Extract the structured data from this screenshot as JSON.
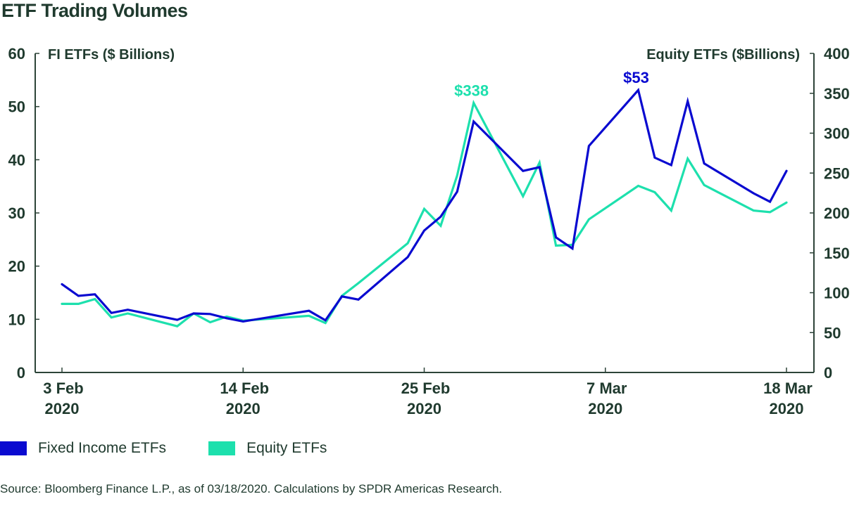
{
  "title": "ETF Trading Volumes",
  "legend": [
    {
      "label": "Fixed Income ETFs",
      "color": "#0a0ad0"
    },
    {
      "label": "Equity ETFs",
      "color": "#1de0ad"
    }
  ],
  "source": "Source: Bloomberg Finance L.P., as of 03/18/2020. Calculations by SPDR Americas Research.",
  "chart_data": {
    "type": "line",
    "title": "ETF Trading Volumes",
    "left_axis_label": "FI ETFs ($ Billions)",
    "right_axis_label": "Equity ETFs ($Billions)",
    "ylim_left": [
      0,
      60
    ],
    "ylim_right": [
      0,
      400
    ],
    "yticks_left": [
      "0",
      "10",
      "20",
      "30",
      "40",
      "50",
      "60"
    ],
    "yticks_right": [
      "0",
      "50",
      "100",
      "150",
      "200",
      "250",
      "300",
      "350",
      "400"
    ],
    "xticks": [
      {
        "day": 0,
        "line1": "3  Feb",
        "line2": "2020"
      },
      {
        "day": 11,
        "line1": "14  Feb",
        "line2": "2020"
      },
      {
        "day": 22,
        "line1": "25  Feb",
        "line2": "2020"
      },
      {
        "day": 33,
        "line1": "7  Mar",
        "line2": "2020"
      },
      {
        "day": 44,
        "line1": "18  Mar",
        "line2": "2020"
      }
    ],
    "x_days_from_3_feb": [
      0,
      1,
      2,
      3,
      4,
      7,
      8,
      9,
      10,
      11,
      15,
      16,
      17,
      18,
      21,
      22,
      23,
      24,
      25,
      28,
      29,
      30,
      31,
      32,
      35,
      36,
      37,
      38,
      39,
      42,
      43,
      44
    ],
    "series": [
      {
        "name": "Fixed Income ETFs",
        "axis": "left",
        "color": "#0a0ad0",
        "values": [
          16.6,
          14.4,
          14.7,
          11.2,
          11.8,
          9.9,
          11.1,
          11.0,
          10.2,
          9.6,
          11.6,
          9.8,
          14.3,
          13.7,
          21.7,
          26.7,
          29.3,
          34.0,
          47.2,
          37.9,
          38.6,
          25.4,
          23.3,
          42.6,
          53.1,
          40.4,
          39.0,
          51.0,
          39.3,
          33.7,
          32.1,
          37.9
        ],
        "annotation": {
          "label": "$53",
          "index": 24
        }
      },
      {
        "name": "Equity ETFs",
        "axis": "right",
        "color": "#1de0ad",
        "values": [
          86,
          86,
          92,
          69,
          74,
          58,
          74,
          63,
          70,
          65,
          71,
          62,
          96,
          112,
          162,
          205,
          184,
          247,
          338,
          221,
          263,
          159,
          160,
          192,
          234,
          226,
          203,
          268,
          235,
          203,
          201,
          213
        ],
        "annotation": {
          "label": "$338",
          "index": 18
        }
      }
    ]
  }
}
